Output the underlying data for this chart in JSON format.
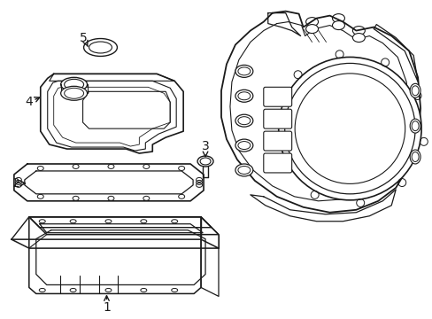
{
  "bg_color": "#ffffff",
  "line_color": "#1a1a1a",
  "lw": 1.0,
  "fig_w": 4.89,
  "fig_h": 3.6,
  "dpi": 100,
  "label_fs": 10
}
